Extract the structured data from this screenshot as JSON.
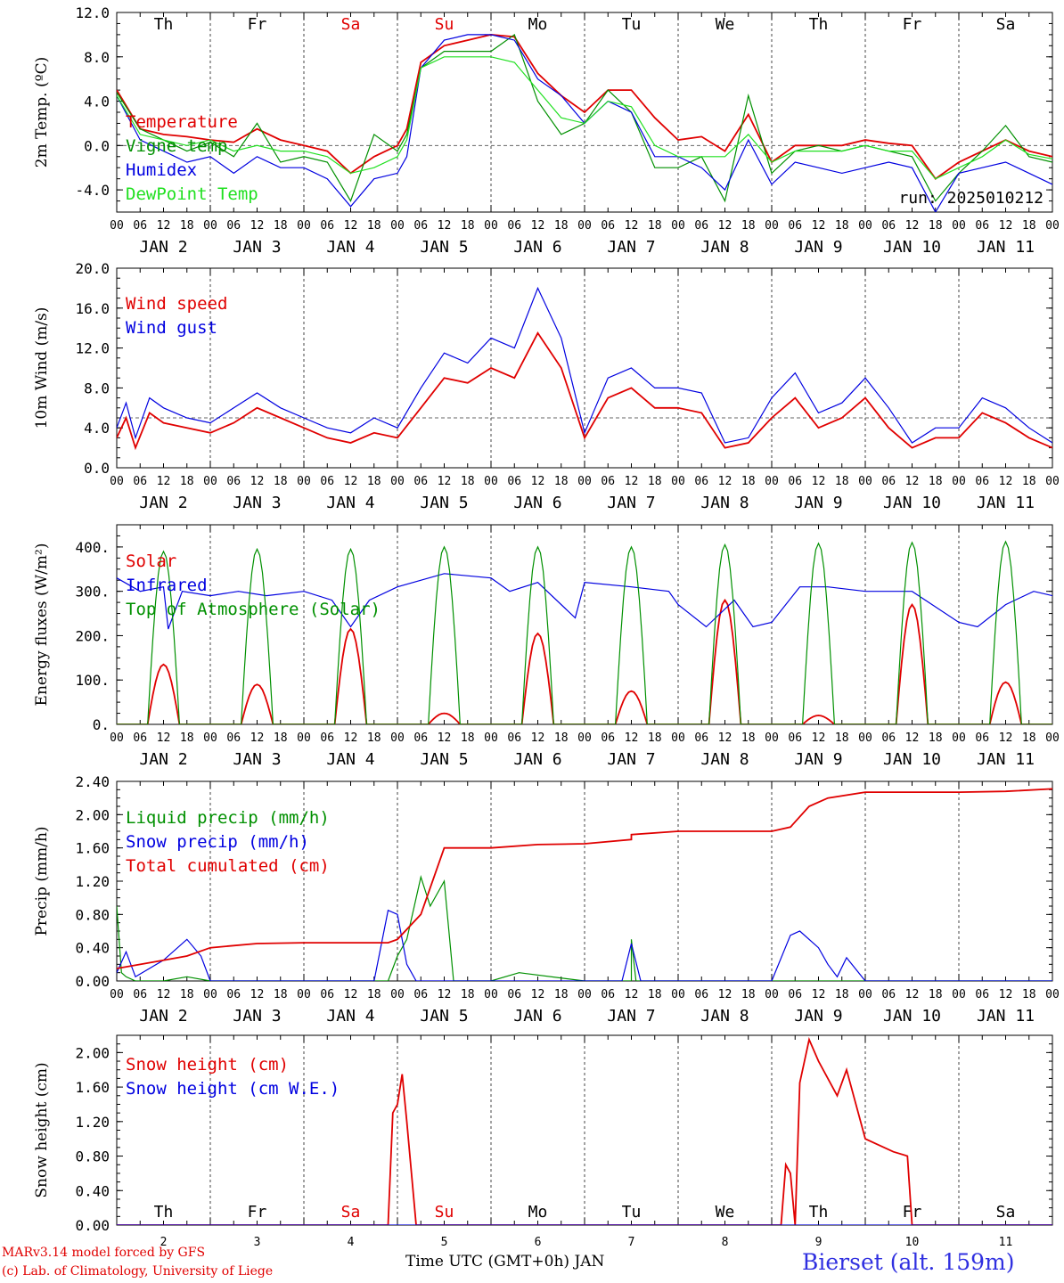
{
  "colors": {
    "red": "#e00000",
    "green": "#009000",
    "lightgreen": "#20e020",
    "blue": "#0000e0",
    "weekend": "#e00000",
    "black": "#000000"
  },
  "footer": {
    "credit_line1": "MARv3.14 model forced by GFS",
    "credit_line2": "(c) Lab. of Climatology, University of Liege",
    "time_label": "Time UTC (GMT+0h) JAN",
    "station": "Bierset (alt. 159m)"
  },
  "chart_data": [
    {
      "type": "line",
      "ylabel": "2m Temp. (ºC)",
      "ylim": [
        -6,
        12
      ],
      "yticks": [
        "12.0",
        "8.0",
        "4.0",
        "0.0",
        "-4.0"
      ],
      "ytick_values": [
        12,
        8,
        4,
        0,
        -4
      ],
      "ref_line": 0,
      "run_label": "run: 2025010212",
      "weekdays": [
        "Th",
        "Fr",
        "Sa",
        "Su",
        "Mo",
        "Tu",
        "We",
        "Th",
        "Fr",
        "Sa"
      ],
      "weekend_flags": [
        false,
        false,
        true,
        true,
        false,
        false,
        false,
        false,
        false,
        false
      ],
      "date_labels": [
        "JAN  2",
        "JAN  3",
        "JAN  4",
        "JAN  5",
        "JAN  6",
        "JAN  7",
        "JAN  8",
        "JAN  9",
        "JAN 10",
        "JAN 11"
      ],
      "hour_ticks": [
        "00",
        "06",
        "12",
        "18"
      ],
      "x_range_days": [
        0,
        10
      ],
      "series": [
        {
          "name": "Temperature",
          "color": "red",
          "x": [
            0,
            0.25,
            0.5,
            0.75,
            1,
            1.25,
            1.5,
            1.75,
            2,
            2.25,
            2.5,
            2.75,
            3,
            3.1,
            3.25,
            3.5,
            3.75,
            4,
            4.25,
            4.5,
            4.75,
            5,
            5.25,
            5.5,
            5.75,
            6,
            6.25,
            6.5,
            6.75,
            7,
            7.25,
            7.5,
            7.75,
            8,
            8.25,
            8.5,
            8.75,
            9,
            9.25,
            9.5,
            9.75,
            10
          ],
          "y": [
            5,
            1.5,
            1,
            0.8,
            0.5,
            0.3,
            1.5,
            0.5,
            0,
            -0.5,
            -2.5,
            -1,
            0,
            1.5,
            7.5,
            9,
            9.5,
            10,
            9.8,
            6.5,
            4.5,
            3,
            5,
            5,
            2.5,
            0.5,
            0.8,
            -0.5,
            2.8,
            -1.5,
            0,
            0,
            0,
            0.5,
            0.2,
            0,
            -3,
            -1.5,
            -0.5,
            0.5,
            -0.5,
            -1
          ]
        },
        {
          "name": "Vigne temp",
          "color": "green",
          "x": [
            0,
            0.25,
            0.5,
            0.75,
            1,
            1.25,
            1.5,
            1.75,
            2,
            2.25,
            2.5,
            2.75,
            3,
            3.1,
            3.25,
            3.5,
            3.75,
            4,
            4.25,
            4.5,
            4.75,
            5,
            5.25,
            5.5,
            5.75,
            6,
            6.25,
            6.5,
            6.75,
            7,
            7.25,
            7.5,
            7.75,
            8,
            8.25,
            8.5,
            8.75,
            9,
            9.25,
            9.5,
            9.75,
            10
          ],
          "y": [
            4.8,
            1.5,
            0.5,
            -0.5,
            0.3,
            -1,
            2,
            -1.5,
            -1,
            -1.5,
            -5,
            1,
            -0.5,
            1,
            7,
            8.5,
            8.5,
            8.5,
            10,
            4,
            1,
            2,
            5,
            3,
            -2,
            -2,
            -1,
            -5,
            4.5,
            -2.5,
            -0.5,
            0,
            -0.5,
            0,
            -0.5,
            -1,
            -5,
            -2.5,
            -0.5,
            1.8,
            -1,
            -1.5
          ]
        },
        {
          "name": "Humidex",
          "color": "blue",
          "x": [
            0,
            0.25,
            0.5,
            0.75,
            1,
            1.25,
            1.5,
            1.75,
            2,
            2.25,
            2.5,
            2.75,
            3,
            3.1,
            3.25,
            3.5,
            3.75,
            4,
            4.25,
            4.5,
            4.75,
            5,
            5.25,
            5.5,
            5.75,
            6,
            6.25,
            6.5,
            6.75,
            7,
            7.25,
            7.5,
            7.75,
            8,
            8.25,
            8.5,
            8.75,
            9,
            9.25,
            9.5,
            9.75,
            10
          ],
          "y": [
            4.5,
            0.5,
            -0.5,
            -1.5,
            -1,
            -2.5,
            -1,
            -2,
            -2,
            -3,
            -5.5,
            -3,
            -2.5,
            -1,
            7,
            9.5,
            10,
            10,
            9.5,
            6,
            4.5,
            2,
            4,
            3,
            -1,
            -1,
            -2,
            -4,
            0.5,
            -3.5,
            -1.5,
            -2,
            -2.5,
            -2,
            -1.5,
            -2,
            -6,
            -2.5,
            -2,
            -1.5,
            -2.5,
            -3.5
          ]
        },
        {
          "name": "DewPoint Temp",
          "color": "lightgreen",
          "x": [
            0,
            0.25,
            0.5,
            0.75,
            1,
            1.25,
            1.5,
            1.75,
            2,
            2.25,
            2.5,
            2.75,
            3,
            3.1,
            3.25,
            3.5,
            3.75,
            4,
            4.25,
            4.5,
            4.75,
            5,
            5.25,
            5.5,
            5.75,
            6,
            6.25,
            6.5,
            6.75,
            7,
            7.25,
            7.5,
            7.75,
            8,
            8.25,
            8.5,
            8.75,
            9,
            9.25,
            9.5,
            9.75,
            10
          ],
          "y": [
            4.5,
            1,
            0.5,
            0,
            0.5,
            -0.5,
            0,
            -0.5,
            -0.5,
            -1,
            -2.5,
            -2,
            -1,
            0.5,
            7,
            8,
            8,
            8,
            7.5,
            5,
            2.5,
            2,
            4,
            3.5,
            0,
            -1,
            -1,
            -1,
            1,
            -1.5,
            -0.5,
            -0.5,
            -0.5,
            0,
            -0.5,
            -0.5,
            -3,
            -2,
            -1,
            0.5,
            -0.8,
            -1.2
          ]
        }
      ]
    },
    {
      "type": "line",
      "ylabel": "10m Wind (m/s)",
      "ylim": [
        0,
        20
      ],
      "yticks": [
        "20.0",
        "16.0",
        "12.0",
        "8.0",
        "4.0",
        "0.0"
      ],
      "ytick_values": [
        20,
        16,
        12,
        8,
        4,
        0
      ],
      "ref_line": 5,
      "date_labels": [
        "JAN  2",
        "JAN  3",
        "JAN  4",
        "JAN  5",
        "JAN  6",
        "JAN  7",
        "JAN  8",
        "JAN  9",
        "JAN 10",
        "JAN 11"
      ],
      "hour_ticks": [
        "00",
        "06",
        "12",
        "18"
      ],
      "x_range_days": [
        0,
        10
      ],
      "series": [
        {
          "name": "Wind speed",
          "color": "red",
          "x": [
            0,
            0.1,
            0.2,
            0.35,
            0.5,
            0.75,
            1,
            1.25,
            1.5,
            1.75,
            2,
            2.25,
            2.5,
            2.75,
            3,
            3.25,
            3.5,
            3.75,
            4,
            4.25,
            4.5,
            4.75,
            5,
            5.25,
            5.5,
            5.75,
            6,
            6.25,
            6.5,
            6.75,
            7,
            7.25,
            7.5,
            7.75,
            8,
            8.25,
            8.5,
            8.75,
            9,
            9.25,
            9.5,
            9.75,
            10
          ],
          "y": [
            3,
            5,
            2,
            5.5,
            4.5,
            4,
            3.5,
            4.5,
            6,
            5,
            4,
            3,
            2.5,
            3.5,
            3,
            6,
            9,
            8.5,
            10,
            9,
            13.5,
            10,
            3,
            7,
            8,
            6,
            6,
            5.5,
            2,
            2.5,
            5,
            7,
            4,
            5,
            7,
            4,
            2,
            3,
            3,
            5.5,
            4.5,
            3,
            2
          ]
        },
        {
          "name": "Wind gust",
          "color": "blue",
          "x": [
            0,
            0.1,
            0.2,
            0.35,
            0.5,
            0.75,
            1,
            1.25,
            1.5,
            1.75,
            2,
            2.25,
            2.5,
            2.75,
            3,
            3.25,
            3.5,
            3.75,
            4,
            4.25,
            4.5,
            4.75,
            5,
            5.25,
            5.5,
            5.75,
            6,
            6.25,
            6.5,
            6.75,
            7,
            7.25,
            7.5,
            7.75,
            8,
            8.25,
            8.5,
            8.75,
            9,
            9.25,
            9.5,
            9.75,
            10
          ],
          "y": [
            4,
            6.5,
            3,
            7,
            6,
            5,
            4.5,
            6,
            7.5,
            6,
            5,
            4,
            3.5,
            5,
            4,
            8,
            11.5,
            10.5,
            13,
            12,
            18,
            13,
            3.5,
            9,
            10,
            8,
            8,
            7.5,
            2.5,
            3,
            7,
            9.5,
            5.5,
            6.5,
            9,
            6,
            2.5,
            4,
            4,
            7,
            6,
            4,
            2.5
          ]
        }
      ]
    },
    {
      "type": "line",
      "ylabel": "Energy fluxes (W/m²)",
      "ylim": [
        0,
        450
      ],
      "yticks": [
        "400.",
        "300.",
        "200.",
        "100.",
        "0."
      ],
      "ytick_values": [
        400,
        300,
        200,
        100,
        0
      ],
      "date_labels": [
        "JAN  2",
        "JAN  3",
        "JAN  4",
        "JAN  5",
        "JAN  6",
        "JAN  7",
        "JAN  8",
        "JAN  9",
        "JAN 10",
        "JAN 11"
      ],
      "hour_ticks": [
        "00",
        "06",
        "12",
        "18"
      ],
      "x_range_days": [
        0,
        10
      ],
      "series": [
        {
          "name": "Solar",
          "color": "red",
          "peaks": [
            135,
            90,
            215,
            25,
            205,
            75,
            280,
            20,
            270,
            95
          ]
        },
        {
          "name": "Infrared",
          "color": "blue",
          "x": [
            0,
            0.25,
            0.5,
            0.55,
            0.7,
            1,
            1.3,
            1.6,
            2,
            2.3,
            2.5,
            2.7,
            3,
            3.5,
            4,
            4.2,
            4.5,
            4.9,
            5,
            5.5,
            5.9,
            6,
            6.3,
            6.6,
            6.8,
            7,
            7.3,
            7.6,
            8,
            8.5,
            9,
            9.2,
            9.5,
            9.8,
            10
          ],
          "y": [
            330,
            300,
            310,
            215,
            300,
            290,
            300,
            290,
            300,
            280,
            220,
            280,
            310,
            340,
            330,
            300,
            320,
            240,
            320,
            310,
            300,
            270,
            220,
            280,
            220,
            230,
            310,
            310,
            300,
            300,
            230,
            220,
            270,
            300,
            290
          ]
        },
        {
          "name": "Top of Atmosphere (Solar)",
          "color": "green",
          "peaks": [
            390,
            395,
            395,
            400,
            400,
            400,
            405,
            408,
            410,
            412
          ]
        }
      ]
    },
    {
      "type": "line",
      "ylabel": "Precip (mm/h)",
      "ylim": [
        0,
        2.4
      ],
      "yticks": [
        "2.40",
        "2.00",
        "1.60",
        "1.20",
        "0.80",
        "0.40",
        "0.00"
      ],
      "ytick_values": [
        2.4,
        2.0,
        1.6,
        1.2,
        0.8,
        0.4,
        0
      ],
      "date_labels": [
        "JAN  2",
        "JAN  3",
        "JAN  4",
        "JAN  5",
        "JAN  6",
        "JAN  7",
        "JAN  8",
        "JAN  9",
        "JAN 10",
        "JAN 11"
      ],
      "hour_ticks": [
        "00",
        "06",
        "12",
        "18"
      ],
      "x_range_days": [
        0,
        10
      ],
      "series": [
        {
          "name": "Liquid precip (mm/h)",
          "color": "green",
          "x": [
            0,
            0.05,
            0.1,
            0.2,
            0.5,
            0.75,
            1,
            2,
            2.9,
            3,
            3.1,
            3.25,
            3.35,
            3.5,
            3.6,
            4,
            4.3,
            5,
            5.5,
            5.5,
            5.55,
            5.6,
            6,
            8,
            10
          ],
          "y": [
            0.9,
            0.1,
            0.05,
            0,
            0,
            0.05,
            0,
            0,
            0,
            0.3,
            0.5,
            1.25,
            0.9,
            1.2,
            0,
            0,
            0.1,
            0,
            0,
            0.5,
            0,
            0,
            0,
            0,
            0
          ]
        },
        {
          "name": "Snow precip (mm/h)",
          "color": "blue",
          "x": [
            0,
            0.1,
            0.2,
            0.5,
            0.75,
            0.9,
            1,
            1.5,
            2,
            2.75,
            2.9,
            3,
            3.1,
            3.2,
            4,
            5.4,
            5.5,
            5.6,
            6,
            7,
            7.2,
            7.3,
            7.5,
            7.6,
            7.7,
            7.8,
            8,
            9,
            10
          ],
          "y": [
            0.1,
            0.35,
            0.05,
            0.25,
            0.5,
            0.3,
            0,
            0,
            0,
            0,
            0.85,
            0.8,
            0.2,
            0,
            0,
            0,
            0.45,
            0,
            0,
            0,
            0.55,
            0.6,
            0.4,
            0.2,
            0.05,
            0.28,
            0,
            0,
            0
          ]
        },
        {
          "name": "Total cumulated (cm)",
          "color": "red",
          "x": [
            0,
            0.5,
            0.75,
            1,
            1.5,
            2,
            2.5,
            2.9,
            3,
            3.25,
            3.5,
            4,
            4.5,
            5,
            5.5,
            5.5,
            6,
            6.5,
            7,
            7.2,
            7.4,
            7.6,
            8,
            8.5,
            9,
            9.5,
            10
          ],
          "y": [
            0.15,
            0.25,
            0.3,
            0.4,
            0.45,
            0.46,
            0.46,
            0.46,
            0.5,
            0.8,
            1.6,
            1.6,
            1.64,
            1.65,
            1.7,
            1.76,
            1.8,
            1.8,
            1.8,
            1.85,
            2.1,
            2.2,
            2.27,
            2.27,
            2.27,
            2.28,
            2.31
          ]
        }
      ]
    },
    {
      "type": "line",
      "ylabel": "Snow height (cm)",
      "ylim": [
        0,
        2.2
      ],
      "yticks": [
        "2.00",
        "1.60",
        "1.20",
        "0.80",
        "0.40",
        "0.00"
      ],
      "ytick_values": [
        2.0,
        1.6,
        1.2,
        0.8,
        0.4,
        0
      ],
      "weekdays": [
        "Th",
        "Fr",
        "Sa",
        "Su",
        "Mo",
        "Tu",
        "We",
        "Th",
        "Fr",
        "Sa"
      ],
      "weekend_flags": [
        false,
        false,
        true,
        true,
        false,
        false,
        false,
        false,
        false,
        false
      ],
      "day_numbers": [
        "2",
        "3",
        "4",
        "5",
        "6",
        "7",
        "8",
        "9",
        "10",
        "11"
      ],
      "x_range_days": [
        0,
        10
      ],
      "series": [
        {
          "name": "Snow height (cm)",
          "color": "red",
          "x": [
            0,
            2.9,
            2.95,
            3,
            3.05,
            3.1,
            3.2,
            7.1,
            7.15,
            7.2,
            7.25,
            7.3,
            7.4,
            7.5,
            7.7,
            7.8,
            8,
            8.3,
            8.45,
            8.5,
            10
          ],
          "y": [
            0,
            0,
            1.3,
            1.4,
            1.75,
            1.2,
            0,
            0,
            0.7,
            0.6,
            0,
            1.65,
            2.15,
            1.9,
            1.5,
            1.8,
            1.0,
            0.85,
            0.8,
            0,
            0
          ]
        },
        {
          "name": "Snow height (cm W.E.)",
          "color": "blue",
          "x": [
            0,
            10
          ],
          "y": [
            0,
            0
          ]
        }
      ]
    }
  ]
}
